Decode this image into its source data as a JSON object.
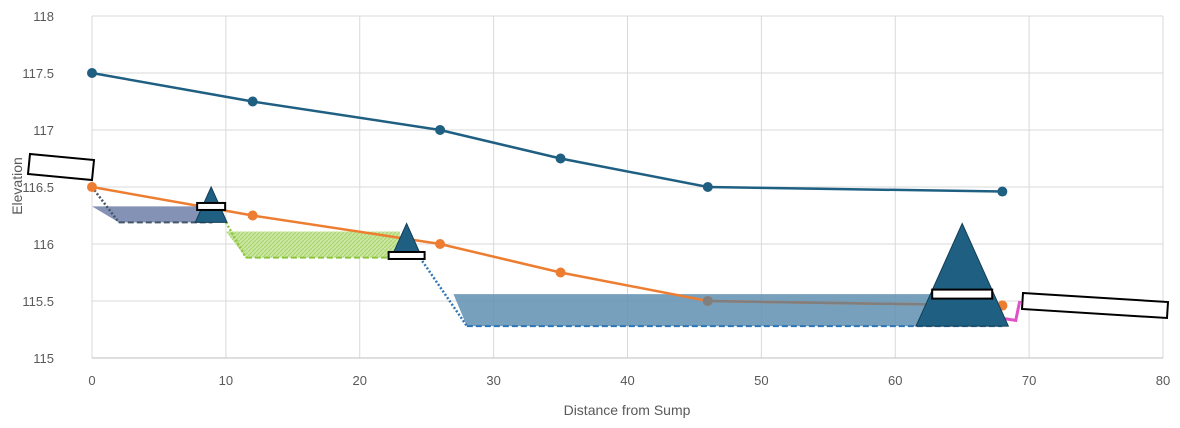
{
  "chart_data": {
    "type": "line",
    "xlabel": "Distance from Sump",
    "ylabel": "Elevation",
    "xlim": [
      0,
      80
    ],
    "ylim": [
      115,
      118
    ],
    "x_ticks": [
      "0",
      "10",
      "20",
      "30",
      "40",
      "50",
      "60",
      "70",
      "80"
    ],
    "y_ticks": [
      "115",
      "115.5",
      "116",
      "116.5",
      "117",
      "117.5",
      "118"
    ],
    "grid": "vertical and horizontal",
    "legend": "none",
    "series": [
      {
        "color": "#1f5f82",
        "x": [
          0,
          12,
          26,
          35,
          46,
          68
        ],
        "y": [
          117.5,
          117.25,
          117.0,
          116.75,
          116.5,
          116.46
        ]
      },
      {
        "color": "#ed7d31",
        "x": [
          0,
          12,
          26,
          35,
          46,
          68
        ],
        "y": [
          116.5,
          116.25,
          116.0,
          115.75,
          115.5,
          115.46
        ]
      }
    ],
    "pools": [
      {
        "color": "#44546a",
        "fill_color": "#6f7fa8",
        "x_top": [
          0,
          9
        ],
        "y_top": 116.33,
        "x_bottom": [
          2,
          9
        ],
        "y_bottom": 116.19
      },
      {
        "color": "#8cc63f",
        "fill_color": "#c9e7a0",
        "x_top": [
          10,
          23
        ],
        "y_top": 116.11,
        "x_bottom": [
          11.5,
          23
        ],
        "y_bottom": 115.88
      },
      {
        "color": "#2e75b6",
        "fill_color": "#5f8fb0",
        "x_top": [
          27,
          63
        ],
        "y_top": 115.56,
        "x_bottom": [
          28,
          68
        ],
        "y_bottom": 115.28
      }
    ],
    "weirs": [
      {
        "x": 8.9,
        "crest": 116.5,
        "base": 116.19,
        "color": "#1f5f82"
      },
      {
        "x": 23.5,
        "crest": 116.18,
        "base": 115.9,
        "color": "#1f5f82"
      },
      {
        "x": 65.0,
        "crest": 116.18,
        "base": 115.28,
        "color": "#1f5f82"
      }
    ],
    "outlet": {
      "color": "#e052c8",
      "x": [
        67.9,
        69.0,
        69.3
      ],
      "y": [
        115.35,
        115.33,
        115.5
      ]
    },
    "extra_point": {
      "x": 68,
      "y": 115.46,
      "color": "#ed7d31"
    },
    "colors": {
      "grid": "#d9d9d9",
      "axis": "#bfbfbf",
      "text": "#595959"
    }
  }
}
